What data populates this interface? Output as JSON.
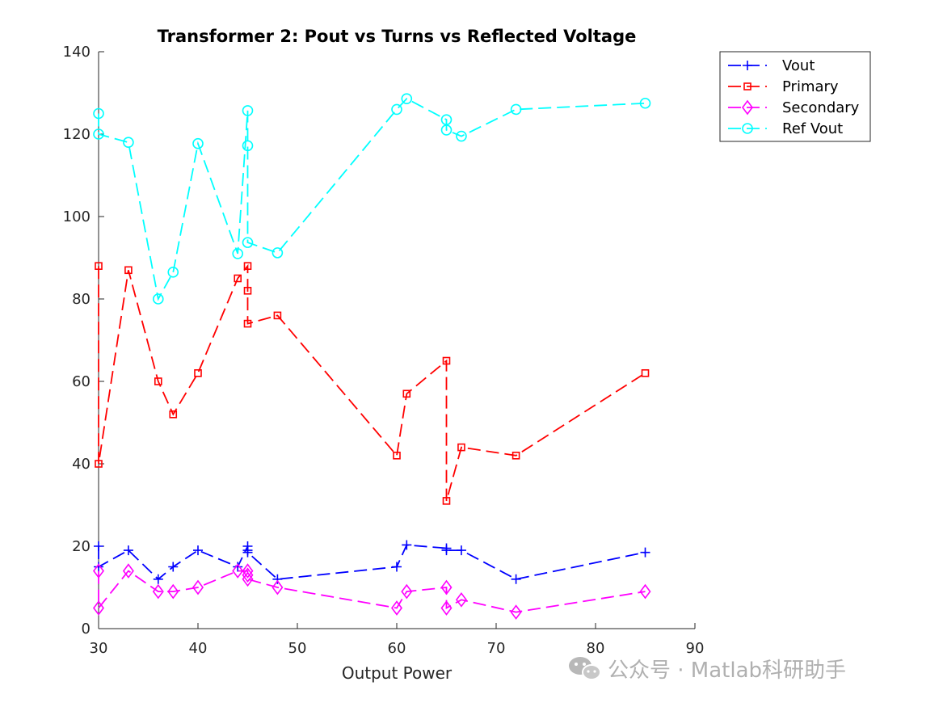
{
  "watermark": {
    "text": "公众号 · Matlab科研助手",
    "icon": "wechat-icon"
  },
  "chart_data": {
    "type": "line",
    "title": "Transformer 2: Pout vs Turns vs Reflected Voltage",
    "xlabel": "Output Power",
    "ylabel": "",
    "xlim": [
      30,
      90
    ],
    "ylim": [
      0,
      140
    ],
    "xticks": [
      30,
      40,
      50,
      60,
      70,
      80,
      90
    ],
    "yticks": [
      0,
      20,
      40,
      60,
      80,
      100,
      120,
      140
    ],
    "grid": false,
    "legend_position": "outside-top-right",
    "x": [
      30,
      30,
      33,
      36,
      37.5,
      40,
      44,
      45,
      45,
      45,
      48,
      60,
      61,
      65,
      65,
      66.5,
      72,
      85
    ],
    "series": [
      {
        "name": "Vout",
        "color": "#0000ff",
        "marker": "plus",
        "values": [
          20,
          15,
          19,
          12,
          15,
          19,
          15,
          20,
          19,
          18.5,
          12,
          15,
          20.3,
          19.5,
          19,
          19,
          12,
          18.5
        ]
      },
      {
        "name": "Primary",
        "color": "#ff0000",
        "marker": "square",
        "values": [
          88,
          40,
          87,
          60,
          52,
          62,
          85,
          88,
          82,
          74,
          76,
          42,
          57,
          65,
          31,
          44,
          42,
          62
        ]
      },
      {
        "name": "Secondary",
        "color": "#ff00ff",
        "marker": "diamond",
        "values": [
          14,
          5,
          14,
          9,
          9,
          10,
          14,
          14,
          13,
          12,
          10,
          5,
          9,
          10,
          5,
          7,
          4,
          9
        ]
      },
      {
        "name": "Ref Vout",
        "color": "#00ffff",
        "marker": "circle",
        "values": [
          125,
          120,
          118,
          80,
          86.5,
          117.7,
          91,
          125.7,
          117.2,
          93.7,
          91.2,
          126,
          128.6,
          123.5,
          121,
          119.5,
          126,
          127.5
        ]
      }
    ]
  }
}
